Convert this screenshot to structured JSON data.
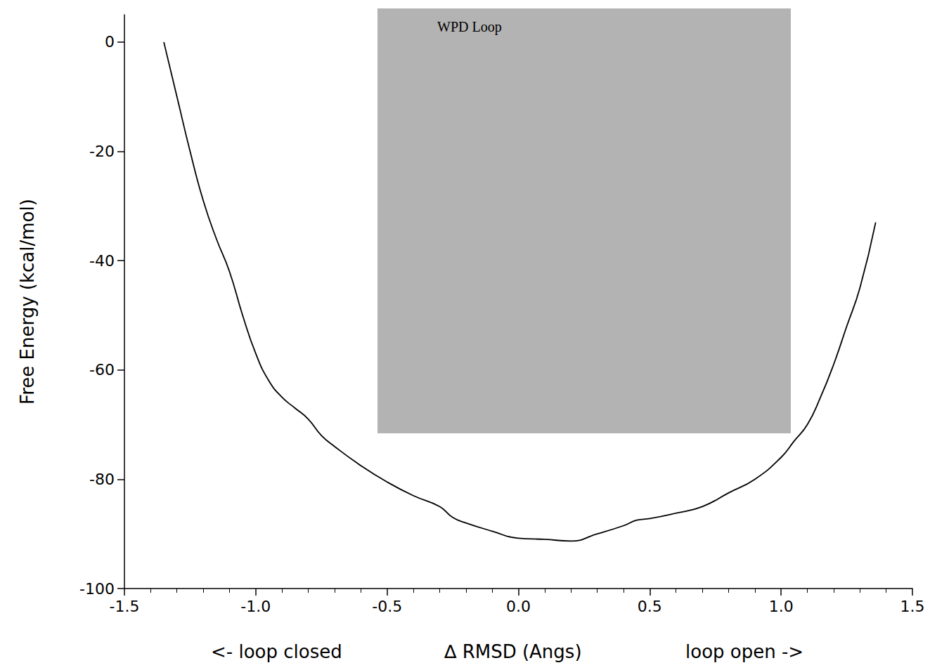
{
  "chart_data": {
    "type": "line",
    "ylabel": "Free Energy (kcal/mol)",
    "xlabel": "∆ RMSD (Angs)",
    "annotations": [
      "<- loop closed",
      "loop open ->",
      "WPD Loop"
    ],
    "x": [
      -1.35,
      -1.3,
      -1.25,
      -1.2,
      -1.15,
      -1.1,
      -1.05,
      -1.0,
      -0.95,
      -0.9,
      -0.85,
      -0.8,
      -0.75,
      -0.7,
      -0.6,
      -0.5,
      -0.4,
      -0.3,
      -0.25,
      -0.2,
      -0.1,
      0.0,
      0.1,
      0.2,
      0.3,
      0.4,
      0.45,
      0.5,
      0.6,
      0.7,
      0.8,
      0.9,
      1.0,
      1.05,
      1.1,
      1.15,
      1.2,
      1.25,
      1.3,
      1.36
    ],
    "values": [
      0,
      -10,
      -20,
      -29,
      -36,
      -42,
      -50,
      -57,
      -62,
      -65,
      -67,
      -69,
      -72,
      -74,
      -77.5,
      -80.5,
      -83,
      -85,
      -87,
      -88,
      -89.5,
      -90.8,
      -91,
      -91.3,
      -90,
      -88.5,
      -87.5,
      -87.2,
      -86.2,
      -85,
      -82.5,
      -80,
      -76,
      -73,
      -70,
      -65,
      -59,
      -52,
      -45,
      -33
    ],
    "color": "#000000",
    "xlim": [
      -1.5,
      1.5
    ],
    "xticks": [
      -1.5,
      {
        "value": -1,
        "label": "-1.0"
      },
      -0.5,
      {
        "value": 0,
        "label": "0.0"
      },
      0.5,
      {
        "value": 1,
        "label": "1.0"
      },
      1.5
    ],
    "ylim": [
      -100,
      5
    ],
    "yticks": [
      -100,
      -80,
      -60,
      -40,
      -20,
      0
    ],
    "grid": false
  }
}
